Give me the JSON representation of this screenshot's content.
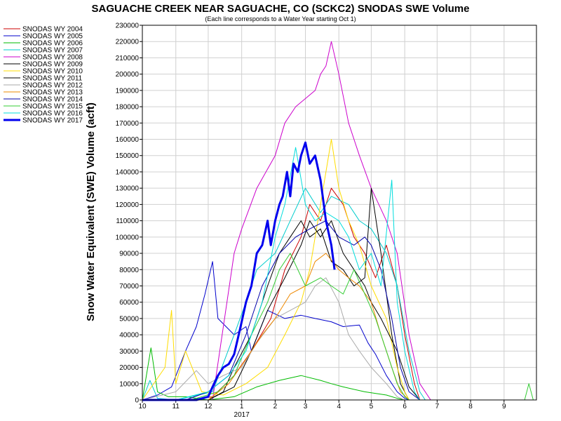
{
  "chart_data": {
    "type": "line",
    "title": "SAGUACHE CREEK NEAR SAGUACHE, CO (SCKC2) SNODAS SWE Volume",
    "subtitle": "(Each line corresponds to a Water Year starting Oct 1)",
    "ylabel": "Snow Water Equivalent (SWE) Volume (acft)",
    "xlabel": "",
    "ylim": [
      0,
      230000
    ],
    "yticks": [
      0,
      10000,
      20000,
      30000,
      40000,
      50000,
      60000,
      70000,
      80000,
      90000,
      100000,
      110000,
      120000,
      130000,
      140000,
      150000,
      160000,
      170000,
      180000,
      190000,
      200000,
      210000,
      220000,
      230000
    ],
    "xlim": [
      "2016-10-01",
      "2017-10-01"
    ],
    "xticks": [
      {
        "x": "2016-10-01",
        "label": "10"
      },
      {
        "x": "2016-11-01",
        "label": "11"
      },
      {
        "x": "2016-12-01",
        "label": "12"
      },
      {
        "x": "2017-01-01",
        "label": "1"
      },
      {
        "x": "2017-02-01",
        "label": "2"
      },
      {
        "x": "2017-03-01",
        "label": "3"
      },
      {
        "x": "2017-04-01",
        "label": "4"
      },
      {
        "x": "2017-05-01",
        "label": "5"
      },
      {
        "x": "2017-06-01",
        "label": "6"
      },
      {
        "x": "2017-07-01",
        "label": "7"
      },
      {
        "x": "2017-08-01",
        "label": "8"
      },
      {
        "x": "2017-09-01",
        "label": "9"
      }
    ],
    "year_label": {
      "x": "2017-01-01",
      "label": "2017"
    },
    "grid": true,
    "legend_position": "left",
    "series": [
      {
        "name": "SNODAS WY 2004",
        "color": "#cc0000",
        "width": 1,
        "x": [
          "2016-10-01",
          "2016-11-15",
          "2016-12-05",
          "2016-12-25",
          "2017-01-10",
          "2017-01-28",
          "2017-02-10",
          "2017-02-25",
          "2017-03-05",
          "2017-03-15",
          "2017-03-25",
          "2017-04-05",
          "2017-04-15",
          "2017-04-25",
          "2017-05-05",
          "2017-05-15",
          "2017-05-25",
          "2017-06-01",
          "2017-06-10",
          "2017-06-15"
        ],
        "y": [
          0,
          0,
          2000,
          15000,
          30000,
          50000,
          80000,
          100000,
          120000,
          110000,
          130000,
          120000,
          100000,
          90000,
          75000,
          95000,
          70000,
          40000,
          10000,
          0
        ]
      },
      {
        "name": "SNODAS WY 2005",
        "color": "#0000cc",
        "width": 1,
        "x": [
          "2016-10-01",
          "2016-10-15",
          "2016-10-28",
          "2016-11-10",
          "2016-11-20",
          "2016-11-28",
          "2016-12-05",
          "2016-12-10",
          "2016-12-25",
          "2017-01-05",
          "2017-01-10",
          "2017-01-25",
          "2017-02-10",
          "2017-02-25",
          "2017-03-10",
          "2017-03-25",
          "2017-04-05",
          "2017-04-20",
          "2017-04-28",
          "2017-05-05",
          "2017-05-15",
          "2017-05-25",
          "2017-06-01",
          "2017-06-05"
        ],
        "y": [
          0,
          3000,
          8000,
          30000,
          45000,
          65000,
          85000,
          50000,
          40000,
          45000,
          30000,
          55000,
          50000,
          52000,
          50000,
          48000,
          45000,
          46000,
          35000,
          28000,
          15000,
          5000,
          1000,
          0
        ]
      },
      {
        "name": "SNODAS WY 2006",
        "color": "#00bb00",
        "width": 1,
        "x": [
          "2016-10-01",
          "2016-10-09",
          "2016-10-15",
          "2016-10-25",
          "2016-11-10",
          "2016-12-01",
          "2016-12-25",
          "2017-01-15",
          "2017-02-05",
          "2017-02-25",
          "2017-03-15",
          "2017-03-25",
          "2017-04-05",
          "2017-04-25",
          "2017-05-15",
          "2017-05-25",
          "2017-06-01"
        ],
        "y": [
          0,
          32000,
          5000,
          2000,
          2000,
          0,
          2000,
          8000,
          12000,
          15000,
          12000,
          10000,
          8000,
          5000,
          3000,
          1000,
          0
        ]
      },
      {
        "name": "SNODAS WY 2007",
        "color": "#00cccc",
        "width": 1,
        "x": [
          "2016-10-01",
          "2016-10-08",
          "2016-10-15",
          "2016-11-01",
          "2016-12-05",
          "2016-12-25",
          "2017-01-05",
          "2017-01-15",
          "2017-02-01",
          "2017-02-15",
          "2017-03-01",
          "2017-03-15",
          "2017-03-25",
          "2017-04-10",
          "2017-04-20",
          "2017-05-01",
          "2017-05-15",
          "2017-05-25",
          "2017-06-05",
          "2017-06-15",
          "2017-06-20"
        ],
        "y": [
          0,
          12000,
          1000,
          0,
          5000,
          40000,
          60000,
          80000,
          90000,
          110000,
          130000,
          115000,
          125000,
          120000,
          110000,
          105000,
          90000,
          70000,
          30000,
          5000,
          0
        ]
      },
      {
        "name": "SNODAS WY 2008",
        "color": "#cc00cc",
        "width": 1,
        "x": [
          "2016-10-01",
          "2016-11-01",
          "2016-12-05",
          "2016-12-25",
          "2017-01-01",
          "2017-01-15",
          "2017-02-01",
          "2017-02-10",
          "2017-02-20",
          "2017-03-01",
          "2017-03-10",
          "2017-03-15",
          "2017-03-20",
          "2017-03-25",
          "2017-04-01",
          "2017-04-10",
          "2017-04-20",
          "2017-05-01",
          "2017-05-15",
          "2017-05-25",
          "2017-06-05",
          "2017-06-15",
          "2017-06-25"
        ],
        "y": [
          0,
          0,
          0,
          90000,
          105000,
          130000,
          150000,
          170000,
          180000,
          185000,
          190000,
          200000,
          205000,
          220000,
          200000,
          170000,
          150000,
          130000,
          110000,
          90000,
          40000,
          10000,
          0
        ]
      },
      {
        "name": "SNODAS WY 2009",
        "color": "#000000",
        "width": 1,
        "x": [
          "2016-10-01",
          "2016-11-01",
          "2016-12-01",
          "2016-12-15",
          "2016-12-25",
          "2017-01-10",
          "2017-01-25",
          "2017-02-05",
          "2017-02-15",
          "2017-02-25",
          "2017-03-05",
          "2017-03-15",
          "2017-03-25",
          "2017-04-05",
          "2017-04-15",
          "2017-04-25",
          "2017-05-01",
          "2017-05-10",
          "2017-05-20",
          "2017-05-28",
          "2017-06-05"
        ],
        "y": [
          0,
          0,
          0,
          5000,
          20000,
          40000,
          70000,
          90000,
          100000,
          110000,
          100000,
          105000,
          85000,
          80000,
          70000,
          75000,
          130000,
          90000,
          40000,
          10000,
          0
        ]
      },
      {
        "name": "SNODAS WY 2010",
        "color": "#ffdd00",
        "width": 1,
        "x": [
          "2016-10-01",
          "2016-10-22",
          "2016-10-28",
          "2016-11-01",
          "2016-11-10",
          "2016-11-25",
          "2016-12-15",
          "2017-01-05",
          "2017-01-25",
          "2017-02-10",
          "2017-02-25",
          "2017-03-05",
          "2017-03-15",
          "2017-03-25",
          "2017-04-01",
          "2017-04-10",
          "2017-04-20",
          "2017-05-01",
          "2017-05-15",
          "2017-05-25",
          "2017-06-01",
          "2017-06-05"
        ],
        "y": [
          0,
          20000,
          55000,
          10000,
          30000,
          5000,
          3000,
          10000,
          20000,
          40000,
          60000,
          80000,
          120000,
          160000,
          130000,
          110000,
          95000,
          70000,
          50000,
          20000,
          5000,
          0
        ]
      },
      {
        "name": "SNODAS WY 2011",
        "color": "#000000",
        "width": 1,
        "x": [
          "2016-10-01",
          "2016-12-01",
          "2016-12-25",
          "2017-01-10",
          "2017-01-25",
          "2017-02-10",
          "2017-02-25",
          "2017-03-05",
          "2017-03-15",
          "2017-03-25",
          "2017-04-05",
          "2017-04-15",
          "2017-04-25",
          "2017-05-01",
          "2017-05-10",
          "2017-05-25",
          "2017-06-05",
          "2017-06-15"
        ],
        "y": [
          0,
          0,
          8000,
          30000,
          55000,
          75000,
          95000,
          110000,
          100000,
          110000,
          90000,
          80000,
          70000,
          60000,
          50000,
          30000,
          8000,
          0
        ]
      },
      {
        "name": "SNODAS WY 2012",
        "color": "#aaaaaa",
        "width": 1,
        "x": [
          "2016-10-01",
          "2016-11-01",
          "2016-11-20",
          "2016-12-01",
          "2016-12-15",
          "2017-01-01",
          "2017-01-15",
          "2017-02-01",
          "2017-02-15",
          "2017-03-01",
          "2017-03-10",
          "2017-03-20",
          "2017-04-01",
          "2017-04-10",
          "2017-04-20",
          "2017-05-01",
          "2017-05-15",
          "2017-05-25",
          "2017-06-01"
        ],
        "y": [
          0,
          5000,
          18000,
          10000,
          15000,
          20000,
          35000,
          50000,
          55000,
          60000,
          70000,
          75000,
          60000,
          40000,
          30000,
          20000,
          10000,
          2000,
          0
        ]
      },
      {
        "name": "SNODAS WY 2013",
        "color": "#ee8800",
        "width": 1,
        "x": [
          "2016-10-01",
          "2016-12-01",
          "2016-12-20",
          "2017-01-05",
          "2017-01-20",
          "2017-02-01",
          "2017-02-15",
          "2017-03-01",
          "2017-03-10",
          "2017-03-20",
          "2017-04-01",
          "2017-04-10",
          "2017-04-20",
          "2017-05-01",
          "2017-05-10",
          "2017-05-20",
          "2017-05-28",
          "2017-06-05"
        ],
        "y": [
          0,
          0,
          10000,
          25000,
          40000,
          50000,
          65000,
          70000,
          85000,
          90000,
          80000,
          75000,
          70000,
          60000,
          40000,
          20000,
          5000,
          0
        ]
      },
      {
        "name": "SNODAS WY 2014",
        "color": "#0000aa",
        "width": 1,
        "x": [
          "2016-10-01",
          "2016-11-10",
          "2016-12-01",
          "2016-12-20",
          "2017-01-05",
          "2017-01-20",
          "2017-02-05",
          "2017-02-20",
          "2017-03-05",
          "2017-03-20",
          "2017-04-01",
          "2017-04-15",
          "2017-04-25",
          "2017-05-01",
          "2017-05-10",
          "2017-05-20",
          "2017-05-28",
          "2017-06-05",
          "2017-06-15"
        ],
        "y": [
          0,
          0,
          5000,
          15000,
          40000,
          70000,
          90000,
          100000,
          105000,
          110000,
          100000,
          95000,
          100000,
          95000,
          80000,
          50000,
          20000,
          5000,
          0
        ]
      },
      {
        "name": "SNODAS WY 2015",
        "color": "#33cc33",
        "width": 1,
        "x": [
          "2016-10-01",
          "2016-11-15",
          "2016-12-10",
          "2016-12-25",
          "2017-01-10",
          "2017-01-25",
          "2017-02-05",
          "2017-02-15",
          "2017-03-01",
          "2017-03-15",
          "2017-03-25",
          "2017-04-05",
          "2017-04-15",
          "2017-04-25",
          "2017-05-05",
          "2017-05-15",
          "2017-05-25",
          "2017-06-01",
          "2017-06-05",
          "2017-09-20",
          "2017-09-24",
          "2017-09-28",
          "2017-10-01"
        ],
        "y": [
          0,
          0,
          5000,
          15000,
          40000,
          60000,
          80000,
          90000,
          70000,
          75000,
          70000,
          65000,
          80000,
          65000,
          50000,
          30000,
          10000,
          2000,
          0,
          0,
          10000,
          0,
          0
        ]
      },
      {
        "name": "SNODAS WY 2016",
        "color": "#00dddd",
        "width": 1,
        "x": [
          "2016-10-01",
          "2016-11-01",
          "2016-12-01",
          "2016-12-20",
          "2017-01-05",
          "2017-01-20",
          "2017-02-01",
          "2017-02-10",
          "2017-02-20",
          "2017-03-01",
          "2017-03-10",
          "2017-03-20",
          "2017-04-01",
          "2017-04-10",
          "2017-04-20",
          "2017-05-01",
          "2017-05-10",
          "2017-05-20",
          "2017-05-25",
          "2017-06-01",
          "2017-06-10",
          "2017-06-15"
        ],
        "y": [
          0,
          0,
          5000,
          15000,
          30000,
          60000,
          100000,
          120000,
          155000,
          120000,
          110000,
          115000,
          110000,
          100000,
          80000,
          90000,
          70000,
          135000,
          60000,
          30000,
          5000,
          0
        ]
      },
      {
        "name": "SNODAS WY 2017",
        "color": "#0000ee",
        "width": 3,
        "x": [
          "2016-10-01",
          "2016-11-20",
          "2016-12-01",
          "2016-12-05",
          "2016-12-10",
          "2016-12-15",
          "2016-12-20",
          "2016-12-25",
          "2016-12-31",
          "2017-01-05",
          "2017-01-10",
          "2017-01-15",
          "2017-01-20",
          "2017-01-25",
          "2017-01-28",
          "2017-02-01",
          "2017-02-05",
          "2017-02-08",
          "2017-02-12",
          "2017-02-15",
          "2017-02-18",
          "2017-02-22",
          "2017-02-25",
          "2017-03-01",
          "2017-03-05",
          "2017-03-10",
          "2017-03-15",
          "2017-03-20",
          "2017-03-25",
          "2017-03-28"
        ],
        "y": [
          0,
          0,
          2000,
          8000,
          15000,
          20000,
          22000,
          28000,
          45000,
          60000,
          70000,
          90000,
          95000,
          110000,
          95000,
          110000,
          120000,
          125000,
          140000,
          125000,
          145000,
          140000,
          150000,
          158000,
          145000,
          150000,
          135000,
          110000,
          95000,
          80000
        ]
      }
    ]
  }
}
